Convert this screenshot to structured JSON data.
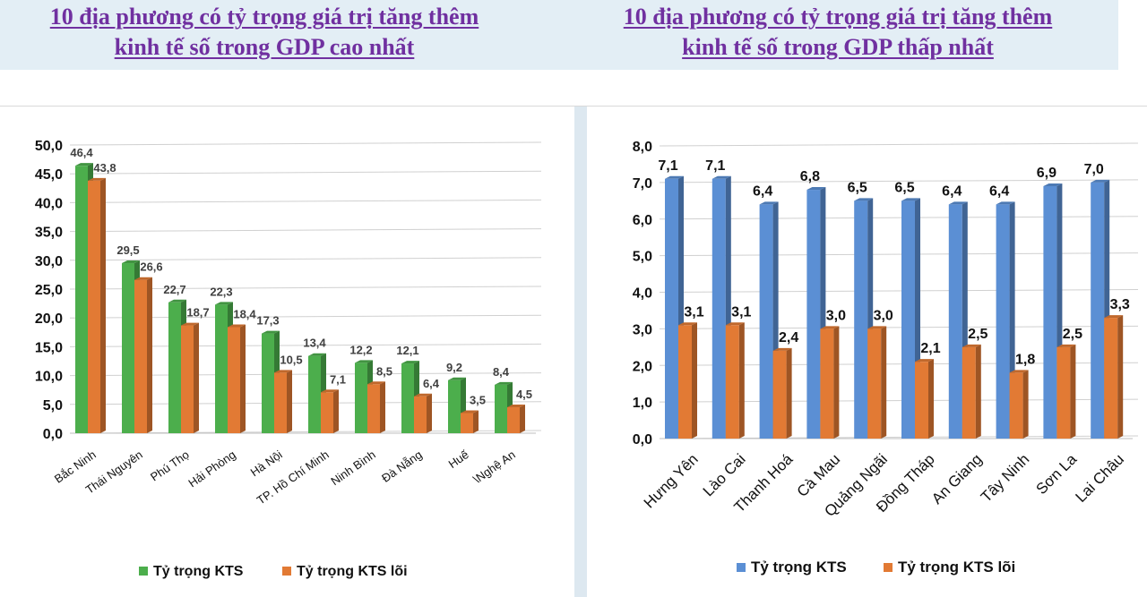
{
  "titles": {
    "left": {
      "line1": "10 địa phương có tỷ trọng giá trị tăng thêm",
      "line2": "kinh tế số trong GDP cao nhất"
    },
    "right": {
      "line1": "10 địa phương có tỷ trọng giá trị tăng thêm",
      "line2": "kinh tế số trong GDP thấp nhất"
    }
  },
  "colors": {
    "kts_left": "#4cae4c",
    "kts_right": "#5b8fd4",
    "kts_loi": "#e27a34"
  },
  "chart_data": [
    {
      "type": "bar",
      "title": "10 địa phương có tỷ trọng giá trị tăng thêm kinh tế số trong GDP cao nhất",
      "categories": [
        "Bắc Ninh",
        "Thái Nguyên",
        "Phú Thọ",
        "Hải Phòng",
        "Hà Nội",
        "TP. Hồ Chí Minh",
        "Ninh Bình",
        "Đà Nẵng",
        "Huế",
        "\\Nghệ An"
      ],
      "series": [
        {
          "name": "Tỷ trọng KTS",
          "values": [
            46.4,
            29.5,
            22.7,
            22.3,
            17.3,
            13.4,
            12.2,
            12.1,
            9.2,
            8.4
          ],
          "labels": [
            "46,4",
            "29,5",
            "22,7",
            "22,3",
            "17,3",
            "13,4",
            "12,2",
            "12,1",
            "9,2",
            "8,4"
          ]
        },
        {
          "name": "Tỷ trọng KTS lõi",
          "values": [
            43.8,
            26.6,
            18.7,
            18.4,
            10.5,
            7.1,
            8.5,
            6.4,
            3.5,
            4.5
          ],
          "labels": [
            "43,8",
            "26,6",
            "18,7",
            "18,4",
            "10,5",
            "7,1",
            "8,5",
            "6,4",
            "3,5",
            "4,5"
          ]
        }
      ],
      "ylim": [
        0,
        50
      ],
      "yticks": [
        "0,0",
        "5,0",
        "10,0",
        "15,0",
        "20,0",
        "25,0",
        "30,0",
        "35,0",
        "40,0",
        "45,0",
        "50,0"
      ],
      "legend": "bottom"
    },
    {
      "type": "bar",
      "title": "10 địa phương có tỷ trọng giá trị tăng thêm kinh tế số trong GDP thấp nhất",
      "categories": [
        "Hưng Yên",
        "Lào Cai",
        "Thanh Hoá",
        "Cà Mau",
        "Quảng Ngãi",
        "Đồng Tháp",
        "An Giang",
        "Tây Ninh",
        "Sơn La",
        "Lai Châu"
      ],
      "series": [
        {
          "name": "Tỷ trọng KTS",
          "values": [
            7.1,
            7.1,
            6.4,
            6.8,
            6.5,
            6.5,
            6.4,
            6.4,
            6.9,
            7.0
          ],
          "labels": [
            "7,1",
            "7,1",
            "6,4",
            "6,8",
            "6,5",
            "6,5",
            "6,4",
            "6,4",
            "6,9",
            "7,0"
          ]
        },
        {
          "name": "Tỷ trọng KTS lõi",
          "values": [
            3.1,
            3.1,
            2.4,
            3.0,
            3.0,
            2.1,
            2.5,
            1.8,
            2.5,
            3.3
          ],
          "labels": [
            "3,1",
            "3,1",
            "2,4",
            "3,0",
            "3,0",
            "2,1",
            "2,5",
            "1,8",
            "2,5",
            "3,3"
          ]
        }
      ],
      "ylim": [
        0,
        8
      ],
      "yticks": [
        "0,0",
        "1,0",
        "2,0",
        "3,0",
        "4,0",
        "5,0",
        "6,0",
        "7,0",
        "8,0"
      ],
      "legend": "bottom"
    }
  ]
}
